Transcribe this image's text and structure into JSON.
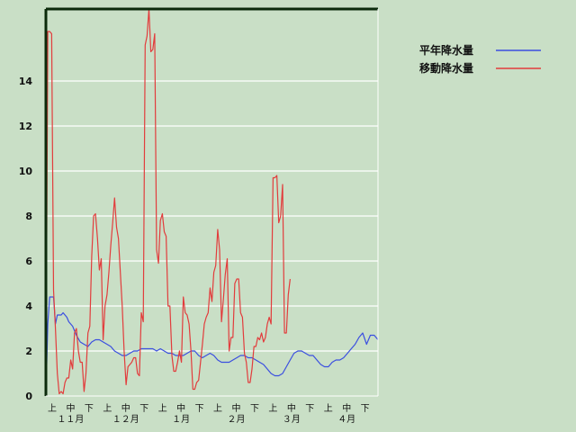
{
  "chart_data": {
    "type": "line",
    "ylim": [
      0,
      17.2
    ],
    "yticks": [
      0,
      2,
      4,
      6,
      8,
      10,
      12,
      14
    ],
    "grid": true,
    "legend_position": "top-right",
    "x_period_labels": [
      "上",
      "中",
      "下",
      "上",
      "中",
      "下",
      "上",
      "中",
      "下",
      "上",
      "中",
      "下",
      "上",
      "中",
      "下",
      "上",
      "中",
      "下"
    ],
    "x_month_labels": [
      "１１月",
      "１２月",
      "１月",
      "２月",
      "３月",
      "４月"
    ],
    "colors": {
      "background": "#c9dfc6",
      "grid": "#ffffff",
      "axis": "#0b2a0b"
    },
    "series": [
      {
        "name": "平年降水量",
        "color": "#3b4fe0",
        "points": [
          [
            0,
            0
          ],
          [
            1,
            3.2
          ],
          [
            2,
            4.4
          ],
          [
            3,
            4.4
          ],
          [
            4,
            4.4
          ],
          [
            5,
            3.2
          ],
          [
            6,
            3.6
          ],
          [
            7,
            3.6
          ],
          [
            8,
            3.6
          ],
          [
            9,
            3.7
          ],
          [
            10,
            3.6
          ],
          [
            11,
            3.5
          ],
          [
            12,
            3.3
          ],
          [
            14,
            3.1
          ],
          [
            16,
            2.7
          ],
          [
            18,
            2.4
          ],
          [
            20,
            2.3
          ],
          [
            22,
            2.2
          ],
          [
            24,
            2.4
          ],
          [
            26,
            2.5
          ],
          [
            28,
            2.5
          ],
          [
            30,
            2.4
          ],
          [
            32,
            2.3
          ],
          [
            34,
            2.2
          ],
          [
            36,
            2.0
          ],
          [
            38,
            1.9
          ],
          [
            40,
            1.8
          ],
          [
            42,
            1.8
          ],
          [
            44,
            1.9
          ],
          [
            46,
            2.0
          ],
          [
            48,
            2.0
          ],
          [
            50,
            2.1
          ],
          [
            52,
            2.1
          ],
          [
            54,
            2.1
          ],
          [
            56,
            2.1
          ],
          [
            58,
            2.0
          ],
          [
            60,
            2.1
          ],
          [
            62,
            2.0
          ],
          [
            64,
            1.9
          ],
          [
            66,
            1.9
          ],
          [
            68,
            1.8
          ],
          [
            70,
            1.8
          ],
          [
            72,
            1.8
          ],
          [
            74,
            1.9
          ],
          [
            76,
            2.0
          ],
          [
            78,
            2.0
          ],
          [
            80,
            1.8
          ],
          [
            82,
            1.7
          ],
          [
            84,
            1.8
          ],
          [
            86,
            1.9
          ],
          [
            88,
            1.8
          ],
          [
            90,
            1.6
          ],
          [
            92,
            1.5
          ],
          [
            94,
            1.5
          ],
          [
            96,
            1.5
          ],
          [
            98,
            1.6
          ],
          [
            100,
            1.7
          ],
          [
            102,
            1.8
          ],
          [
            104,
            1.8
          ],
          [
            106,
            1.7
          ],
          [
            108,
            1.7
          ],
          [
            110,
            1.6
          ],
          [
            112,
            1.5
          ],
          [
            114,
            1.4
          ],
          [
            116,
            1.2
          ],
          [
            118,
            1.0
          ],
          [
            120,
            0.9
          ],
          [
            122,
            0.9
          ],
          [
            124,
            1.0
          ],
          [
            126,
            1.3
          ],
          [
            128,
            1.6
          ],
          [
            130,
            1.9
          ],
          [
            132,
            2.0
          ],
          [
            134,
            2.0
          ],
          [
            136,
            1.9
          ],
          [
            138,
            1.8
          ],
          [
            140,
            1.8
          ],
          [
            142,
            1.6
          ],
          [
            144,
            1.4
          ],
          [
            146,
            1.3
          ],
          [
            148,
            1.3
          ],
          [
            150,
            1.5
          ],
          [
            152,
            1.6
          ],
          [
            154,
            1.6
          ],
          [
            156,
            1.7
          ],
          [
            158,
            1.9
          ],
          [
            160,
            2.1
          ],
          [
            162,
            2.3
          ],
          [
            164,
            2.6
          ],
          [
            166,
            2.8
          ],
          [
            168,
            2.3
          ],
          [
            170,
            2.7
          ],
          [
            172,
            2.7
          ],
          [
            174,
            2.5
          ]
        ]
      },
      {
        "name": "移動降水量",
        "color": "#e23c3c",
        "points": [
          [
            0,
            0
          ],
          [
            1,
            16.2
          ],
          [
            2,
            16.2
          ],
          [
            3,
            16.1
          ],
          [
            4,
            4.7
          ],
          [
            5,
            3.0
          ],
          [
            6,
            1.0
          ],
          [
            7,
            0.1
          ],
          [
            8,
            0.2
          ],
          [
            9,
            0.1
          ],
          [
            10,
            0.6
          ],
          [
            11,
            0.8
          ],
          [
            12,
            0.8
          ],
          [
            13,
            1.6
          ],
          [
            14,
            1.2
          ],
          [
            15,
            2.8
          ],
          [
            16,
            3.0
          ],
          [
            17,
            2.0
          ],
          [
            18,
            1.5
          ],
          [
            19,
            1.5
          ],
          [
            20,
            0.2
          ],
          [
            21,
            1.0
          ],
          [
            22,
            2.8
          ],
          [
            23,
            3.1
          ],
          [
            24,
            6.2
          ],
          [
            25,
            8.0
          ],
          [
            26,
            8.1
          ],
          [
            27,
            7.0
          ],
          [
            28,
            5.6
          ],
          [
            29,
            6.1
          ],
          [
            30,
            2.5
          ],
          [
            31,
            4.0
          ],
          [
            32,
            4.5
          ],
          [
            33,
            5.5
          ],
          [
            34,
            6.7
          ],
          [
            35,
            7.7
          ],
          [
            36,
            8.8
          ],
          [
            37,
            7.5
          ],
          [
            38,
            7.0
          ],
          [
            39,
            5.5
          ],
          [
            40,
            4.0
          ],
          [
            41,
            2.0
          ],
          [
            42,
            0.5
          ],
          [
            43,
            1.3
          ],
          [
            44,
            1.4
          ],
          [
            45,
            1.5
          ],
          [
            46,
            1.7
          ],
          [
            47,
            1.7
          ],
          [
            48,
            1.0
          ],
          [
            49,
            0.9
          ],
          [
            50,
            3.7
          ],
          [
            51,
            3.3
          ],
          [
            52,
            15.6
          ],
          [
            53,
            16.0
          ],
          [
            54,
            17.2
          ],
          [
            55,
            15.3
          ],
          [
            56,
            15.4
          ],
          [
            57,
            16.1
          ],
          [
            58,
            6.5
          ],
          [
            59,
            5.9
          ],
          [
            60,
            7.8
          ],
          [
            61,
            8.1
          ],
          [
            62,
            7.3
          ],
          [
            63,
            7.1
          ],
          [
            64,
            4.0
          ],
          [
            65,
            4.0
          ],
          [
            66,
            1.8
          ],
          [
            67,
            1.1
          ],
          [
            68,
            1.1
          ],
          [
            69,
            1.5
          ],
          [
            70,
            2.0
          ],
          [
            71,
            1.5
          ],
          [
            72,
            4.4
          ],
          [
            73,
            3.7
          ],
          [
            74,
            3.6
          ],
          [
            75,
            3.2
          ],
          [
            76,
            2.0
          ],
          [
            77,
            0.3
          ],
          [
            78,
            0.3
          ],
          [
            79,
            0.6
          ],
          [
            80,
            0.7
          ],
          [
            81,
            1.5
          ],
          [
            82,
            2.3
          ],
          [
            83,
            3.2
          ],
          [
            84,
            3.5
          ],
          [
            85,
            3.7
          ],
          [
            86,
            4.8
          ],
          [
            87,
            4.2
          ],
          [
            88,
            5.5
          ],
          [
            89,
            5.8
          ],
          [
            90,
            7.4
          ],
          [
            91,
            6.5
          ],
          [
            92,
            3.3
          ],
          [
            93,
            4.3
          ],
          [
            94,
            5.4
          ],
          [
            95,
            6.1
          ],
          [
            96,
            2.0
          ],
          [
            97,
            2.6
          ],
          [
            98,
            2.6
          ],
          [
            99,
            5.0
          ],
          [
            100,
            5.2
          ],
          [
            101,
            5.2
          ],
          [
            102,
            3.7
          ],
          [
            103,
            3.5
          ],
          [
            104,
            1.9
          ],
          [
            105,
            1.5
          ],
          [
            106,
            0.6
          ],
          [
            107,
            0.6
          ],
          [
            108,
            1.2
          ],
          [
            109,
            2.2
          ],
          [
            110,
            2.2
          ],
          [
            111,
            2.6
          ],
          [
            112,
            2.5
          ],
          [
            113,
            2.8
          ],
          [
            114,
            2.4
          ],
          [
            115,
            2.6
          ],
          [
            116,
            3.2
          ],
          [
            117,
            3.5
          ],
          [
            118,
            3.2
          ],
          [
            119,
            9.7
          ],
          [
            120,
            9.7
          ],
          [
            121,
            9.8
          ],
          [
            122,
            7.7
          ],
          [
            123,
            8.0
          ],
          [
            124,
            9.4
          ],
          [
            125,
            2.8
          ],
          [
            126,
            2.8
          ],
          [
            127,
            4.5
          ],
          [
            128,
            5.2
          ]
        ]
      }
    ]
  }
}
